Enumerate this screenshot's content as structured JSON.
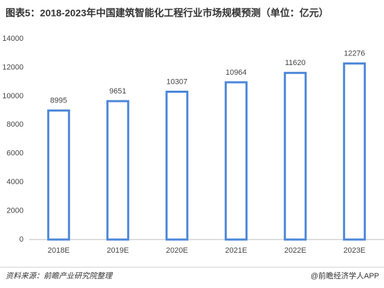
{
  "chart_data": {
    "type": "bar",
    "title": "图表5：2018-2023年中国建筑智能化工程行业市场规模预测（单位：亿元）",
    "categories": [
      "2018E",
      "2019E",
      "2020E",
      "2021E",
      "2022E",
      "2023E"
    ],
    "values": [
      8995,
      9651,
      10307,
      10964,
      11620,
      12276
    ],
    "color": "#4a86d8",
    "ylim": [
      0,
      14000
    ],
    "yticks": [
      0,
      2000,
      4000,
      6000,
      8000,
      10000,
      12000,
      14000
    ],
    "grid": false,
    "source": "资料来源：前瞻产业研究院整理",
    "credit": "@前瞻经济学人APP"
  }
}
